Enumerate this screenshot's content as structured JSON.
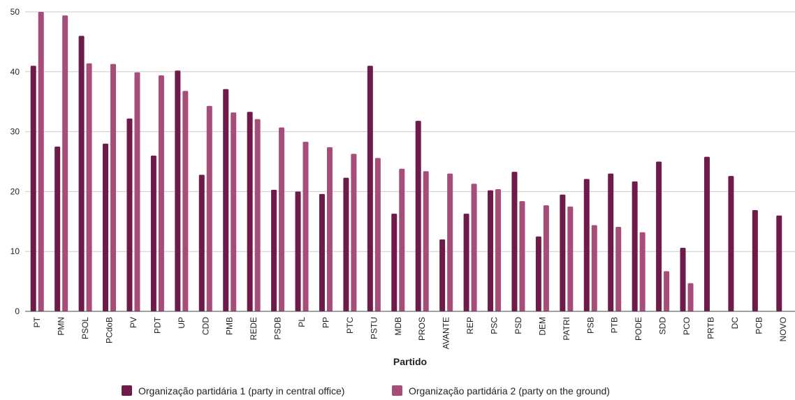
{
  "chart_data": {
    "type": "bar",
    "xlabel": "Partido",
    "ylabel": "",
    "ylim": [
      0,
      50
    ],
    "yticks": [
      0,
      10,
      20,
      30,
      40,
      50
    ],
    "grid": true,
    "legend_position": "bottom",
    "categories": [
      "PT",
      "PMN",
      "PSOL",
      "PCdoB",
      "PV",
      "PDT",
      "UP",
      "CDD",
      "PMB",
      "REDE",
      "PSDB",
      "PL",
      "PP",
      "PTC",
      "PSTU",
      "MDB",
      "PROS",
      "AVANTE",
      "REP",
      "PSC",
      "PSD",
      "DEM",
      "PATRI",
      "PSB",
      "PTB",
      "PODE",
      "SDD",
      "PCO",
      "PRTB",
      "DC",
      "PCB",
      "NOVO"
    ],
    "series": [
      {
        "name": "Organização partidária 1 (party in central office)",
        "color": "#6e1a4a",
        "values": [
          41,
          27.5,
          46,
          28,
          32.2,
          26,
          40.2,
          22.8,
          37.1,
          33.3,
          20.3,
          20,
          19.6,
          22.3,
          41,
          16.3,
          31.8,
          12,
          16.3,
          20.2,
          23.3,
          12.5,
          19.5,
          22.1,
          23,
          21.7,
          25,
          10.6,
          25.8,
          22.6,
          16.9,
          16
        ]
      },
      {
        "name": "Organização partidária 2 (party on the ground)",
        "color": "#a64d7a",
        "values": [
          50,
          49.4,
          41.4,
          41.3,
          39.9,
          39.4,
          36.8,
          34.3,
          33.2,
          32.1,
          30.7,
          28.3,
          27.4,
          26.3,
          25.6,
          23.8,
          23.4,
          23,
          21.3,
          20.4,
          18.4,
          17.7,
          17.5,
          14.4,
          14.1,
          13.2,
          6.7,
          4.7,
          null,
          null,
          null,
          null
        ]
      }
    ]
  }
}
